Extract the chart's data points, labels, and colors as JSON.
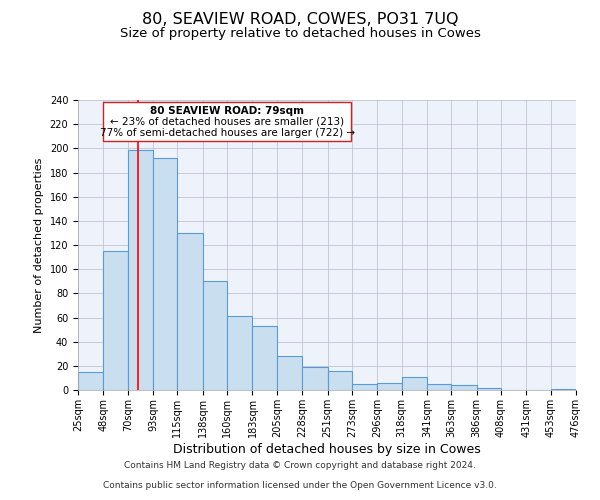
{
  "title": "80, SEAVIEW ROAD, COWES, PO31 7UQ",
  "subtitle": "Size of property relative to detached houses in Cowes",
  "bar_heights": [
    15,
    115,
    199,
    192,
    130,
    90,
    61,
    53,
    28,
    19,
    16,
    5,
    6,
    11,
    5,
    4,
    2,
    0,
    0,
    1
  ],
  "bin_edges": [
    25,
    48,
    70,
    93,
    115,
    138,
    160,
    183,
    205,
    228,
    251,
    273,
    296,
    318,
    341,
    363,
    386,
    408,
    431,
    453,
    476
  ],
  "bin_labels": [
    "25sqm",
    "48sqm",
    "70sqm",
    "93sqm",
    "115sqm",
    "138sqm",
    "160sqm",
    "183sqm",
    "205sqm",
    "228sqm",
    "251sqm",
    "273sqm",
    "296sqm",
    "318sqm",
    "341sqm",
    "363sqm",
    "386sqm",
    "408sqm",
    "431sqm",
    "453sqm",
    "476sqm"
  ],
  "bar_color": "#c9dff0",
  "bar_edge_color": "#5b9bd5",
  "bar_linewidth": 0.8,
  "grid_color": "#bbbbcc",
  "background_color": "#eef2fa",
  "ylabel": "Number of detached properties",
  "xlabel": "Distribution of detached houses by size in Cowes",
  "ylim": [
    0,
    240
  ],
  "yticks": [
    0,
    20,
    40,
    60,
    80,
    100,
    120,
    140,
    160,
    180,
    200,
    220,
    240
  ],
  "red_line_x": 79,
  "annotation_text_line1": "80 SEAVIEW ROAD: 79sqm",
  "annotation_text_line2": "← 23% of detached houses are smaller (213)",
  "annotation_text_line3": "77% of semi-detached houses are larger (722) →",
  "footer_line1": "Contains HM Land Registry data © Crown copyright and database right 2024.",
  "footer_line2": "Contains public sector information licensed under the Open Government Licence v3.0.",
  "title_fontsize": 11.5,
  "subtitle_fontsize": 9.5,
  "xlabel_fontsize": 9,
  "ylabel_fontsize": 8,
  "tick_fontsize": 7,
  "footer_fontsize": 6.5,
  "annot_fontsize": 7.5
}
